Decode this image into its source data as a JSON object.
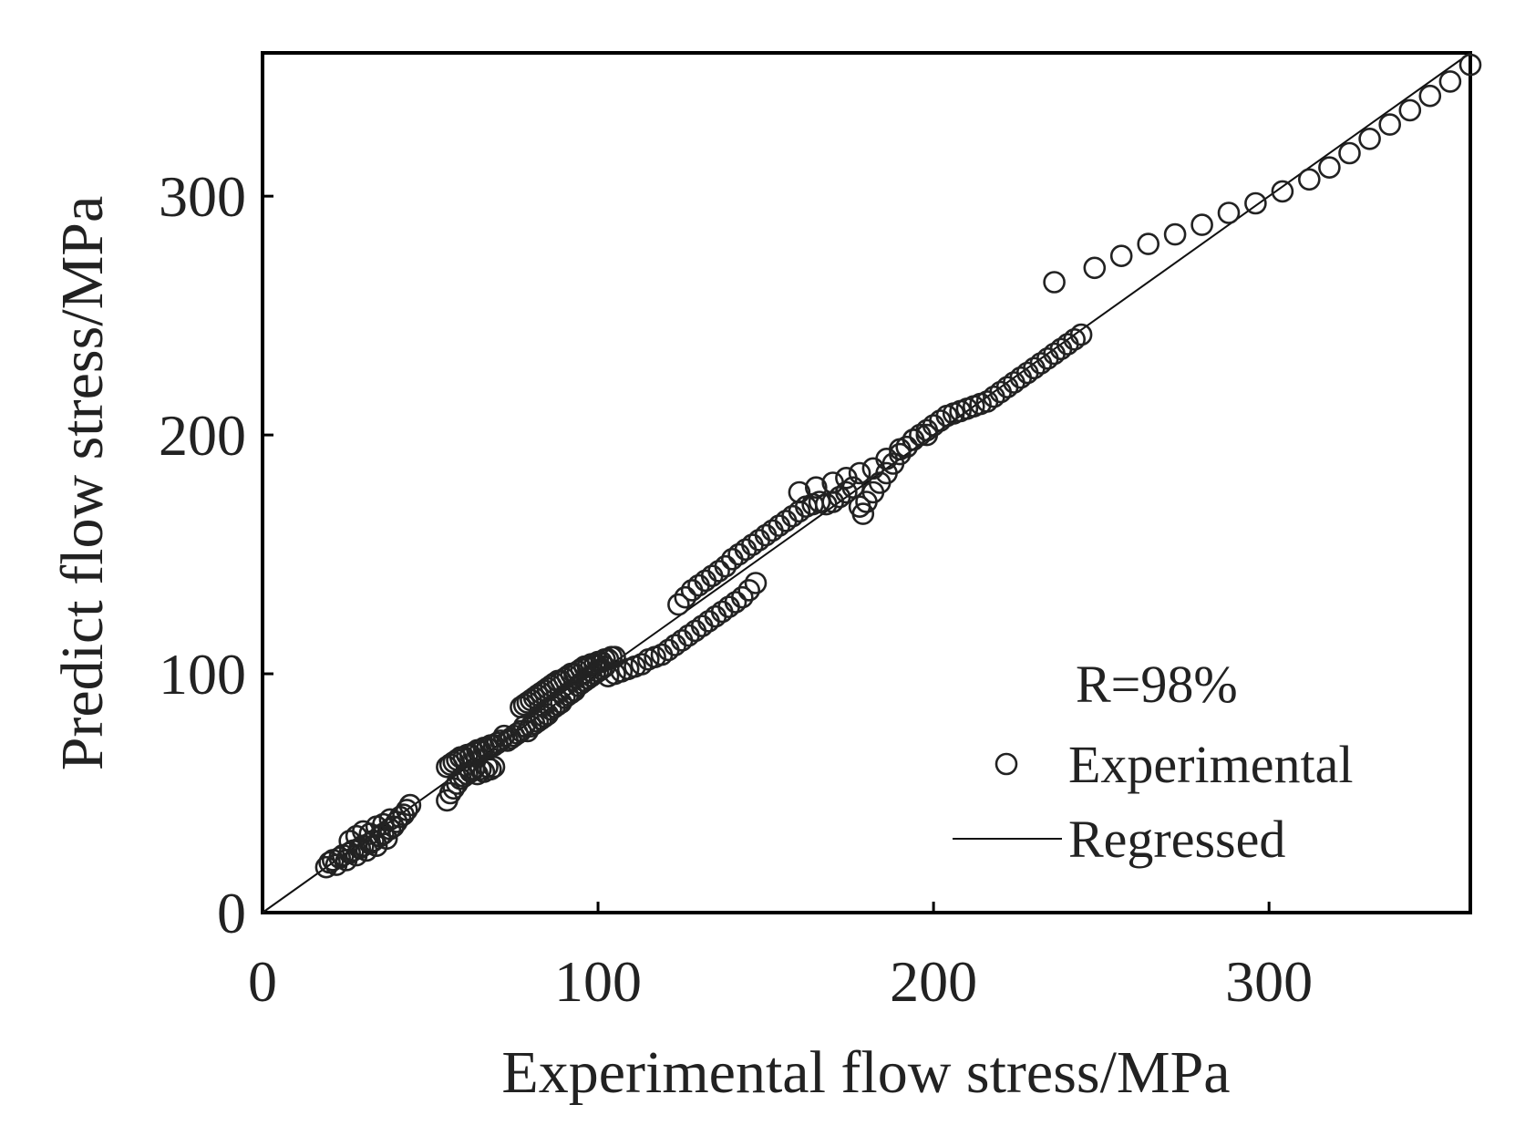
{
  "chart_data": {
    "type": "scatter",
    "title": "",
    "xlabel": "Experimental flow stress/MPa",
    "ylabel": "Predict flow stress/MPa",
    "xlim": [
      0,
      360
    ],
    "ylim": [
      0,
      360
    ],
    "xticks": [
      "0",
      "100",
      "200",
      "300"
    ],
    "yticks": [
      "0",
      "100",
      "200",
      "300"
    ],
    "annotation": "R=98%",
    "legend": {
      "position": "bottom-right",
      "experimental_label": "Experimental",
      "regressed_label": "Regressed"
    },
    "regression_line": {
      "x": [
        0,
        360
      ],
      "y": [
        0,
        360
      ]
    },
    "series": [
      {
        "name": "Experimental",
        "marker": "open-circle",
        "points": [
          [
            19,
            19
          ],
          [
            20,
            21
          ],
          [
            21,
            22
          ],
          [
            22,
            20
          ],
          [
            23,
            23
          ],
          [
            24,
            24
          ],
          [
            25,
            22
          ],
          [
            26,
            25
          ],
          [
            27,
            26
          ],
          [
            28,
            24
          ],
          [
            29,
            27
          ],
          [
            30,
            28
          ],
          [
            31,
            26
          ],
          [
            32,
            29
          ],
          [
            33,
            30
          ],
          [
            34,
            28
          ],
          [
            35,
            32
          ],
          [
            36,
            33
          ],
          [
            37,
            31
          ],
          [
            38,
            35
          ],
          [
            39,
            36
          ],
          [
            40,
            38
          ],
          [
            41,
            40
          ],
          [
            42,
            41
          ],
          [
            43,
            43
          ],
          [
            44,
            45
          ],
          [
            26,
            30
          ],
          [
            28,
            32
          ],
          [
            30,
            34
          ],
          [
            32,
            33
          ],
          [
            34,
            36
          ],
          [
            36,
            37
          ],
          [
            38,
            39
          ],
          [
            55,
            47
          ],
          [
            56,
            50
          ],
          [
            57,
            52
          ],
          [
            58,
            54
          ],
          [
            59,
            56
          ],
          [
            60,
            57
          ],
          [
            61,
            58
          ],
          [
            62,
            59
          ],
          [
            63,
            60
          ],
          [
            64,
            58
          ],
          [
            65,
            60
          ],
          [
            66,
            59
          ],
          [
            67,
            61
          ],
          [
            68,
            60
          ],
          [
            69,
            61
          ],
          [
            55,
            61
          ],
          [
            56,
            62
          ],
          [
            57,
            63
          ],
          [
            58,
            64
          ],
          [
            59,
            65
          ],
          [
            60,
            65
          ],
          [
            61,
            66
          ],
          [
            62,
            66
          ],
          [
            63,
            67
          ],
          [
            64,
            68
          ],
          [
            65,
            68
          ],
          [
            66,
            69
          ],
          [
            67,
            69
          ],
          [
            68,
            70
          ],
          [
            69,
            70
          ],
          [
            70,
            71
          ],
          [
            71,
            72
          ],
          [
            72,
            74
          ],
          [
            73,
            72
          ],
          [
            74,
            73
          ],
          [
            75,
            74
          ],
          [
            76,
            75
          ],
          [
            77,
            76
          ],
          [
            78,
            78
          ],
          [
            79,
            76
          ],
          [
            80,
            78
          ],
          [
            81,
            79
          ],
          [
            82,
            80
          ],
          [
            83,
            81
          ],
          [
            84,
            82
          ],
          [
            85,
            83
          ],
          [
            86,
            85
          ],
          [
            87,
            86
          ],
          [
            88,
            87
          ],
          [
            89,
            88
          ],
          [
            90,
            90
          ],
          [
            91,
            91
          ],
          [
            92,
            92
          ],
          [
            93,
            93
          ],
          [
            94,
            95
          ],
          [
            95,
            96
          ],
          [
            96,
            97
          ],
          [
            97,
            98
          ],
          [
            98,
            99
          ],
          [
            99,
            100
          ],
          [
            100,
            101
          ],
          [
            101,
            102
          ],
          [
            102,
            103
          ],
          [
            77,
            86
          ],
          [
            78,
            87
          ],
          [
            79,
            88
          ],
          [
            80,
            89
          ],
          [
            81,
            90
          ],
          [
            82,
            91
          ],
          [
            83,
            92
          ],
          [
            84,
            93
          ],
          [
            85,
            94
          ],
          [
            86,
            95
          ],
          [
            87,
            96
          ],
          [
            88,
            97
          ],
          [
            89,
            97
          ],
          [
            90,
            98
          ],
          [
            91,
            99
          ],
          [
            92,
            100
          ],
          [
            93,
            100
          ],
          [
            94,
            101
          ],
          [
            95,
            102
          ],
          [
            96,
            103
          ],
          [
            97,
            103
          ],
          [
            98,
            104
          ],
          [
            99,
            104
          ],
          [
            100,
            105
          ],
          [
            101,
            105
          ],
          [
            102,
            106
          ],
          [
            103,
            106
          ],
          [
            104,
            107
          ],
          [
            105,
            107
          ],
          [
            103,
            99
          ],
          [
            105,
            100
          ],
          [
            107,
            101
          ],
          [
            109,
            102
          ],
          [
            111,
            103
          ],
          [
            113,
            104
          ],
          [
            115,
            106
          ],
          [
            117,
            107
          ],
          [
            119,
            108
          ],
          [
            121,
            110
          ],
          [
            123,
            112
          ],
          [
            125,
            114
          ],
          [
            127,
            116
          ],
          [
            129,
            118
          ],
          [
            131,
            120
          ],
          [
            133,
            122
          ],
          [
            135,
            124
          ],
          [
            137,
            126
          ],
          [
            139,
            128
          ],
          [
            141,
            130
          ],
          [
            143,
            132
          ],
          [
            145,
            135
          ],
          [
            147,
            138
          ],
          [
            124,
            129
          ],
          [
            126,
            132
          ],
          [
            128,
            135
          ],
          [
            130,
            137
          ],
          [
            132,
            139
          ],
          [
            134,
            141
          ],
          [
            136,
            143
          ],
          [
            138,
            145
          ],
          [
            140,
            148
          ],
          [
            142,
            150
          ],
          [
            144,
            152
          ],
          [
            146,
            154
          ],
          [
            148,
            156
          ],
          [
            150,
            158
          ],
          [
            152,
            160
          ],
          [
            154,
            162
          ],
          [
            156,
            164
          ],
          [
            158,
            166
          ],
          [
            160,
            168
          ],
          [
            162,
            170
          ],
          [
            164,
            171
          ],
          [
            166,
            172
          ],
          [
            160,
            176
          ],
          [
            165,
            178
          ],
          [
            170,
            180
          ],
          [
            174,
            182
          ],
          [
            178,
            184
          ],
          [
            182,
            186
          ],
          [
            186,
            190
          ],
          [
            190,
            194
          ],
          [
            194,
            198
          ],
          [
            198,
            200
          ],
          [
            168,
            171
          ],
          [
            170,
            172
          ],
          [
            172,
            174
          ],
          [
            174,
            176
          ],
          [
            176,
            178
          ],
          [
            178,
            170
          ],
          [
            179,
            167
          ],
          [
            180,
            172
          ],
          [
            182,
            176
          ],
          [
            184,
            180
          ],
          [
            186,
            184
          ],
          [
            188,
            188
          ],
          [
            190,
            192
          ],
          [
            192,
            195
          ],
          [
            194,
            198
          ],
          [
            196,
            200
          ],
          [
            198,
            202
          ],
          [
            200,
            204
          ],
          [
            202,
            206
          ],
          [
            204,
            208
          ],
          [
            206,
            209
          ],
          [
            208,
            210
          ],
          [
            210,
            211
          ],
          [
            212,
            212
          ],
          [
            214,
            213
          ],
          [
            216,
            214
          ],
          [
            218,
            216
          ],
          [
            220,
            218
          ],
          [
            222,
            220
          ],
          [
            224,
            222
          ],
          [
            226,
            224
          ],
          [
            228,
            226
          ],
          [
            230,
            228
          ],
          [
            232,
            230
          ],
          [
            234,
            232
          ],
          [
            236,
            234
          ],
          [
            238,
            236
          ],
          [
            240,
            238
          ],
          [
            242,
            240
          ],
          [
            244,
            242
          ],
          [
            236,
            264
          ],
          [
            248,
            270
          ],
          [
            256,
            275
          ],
          [
            264,
            280
          ],
          [
            272,
            284
          ],
          [
            280,
            288
          ],
          [
            288,
            293
          ],
          [
            296,
            297
          ],
          [
            304,
            302
          ],
          [
            312,
            307
          ],
          [
            318,
            312
          ],
          [
            324,
            318
          ],
          [
            330,
            324
          ],
          [
            336,
            330
          ],
          [
            342,
            336
          ],
          [
            348,
            342
          ],
          [
            354,
            348
          ],
          [
            360,
            355
          ]
        ]
      }
    ]
  }
}
